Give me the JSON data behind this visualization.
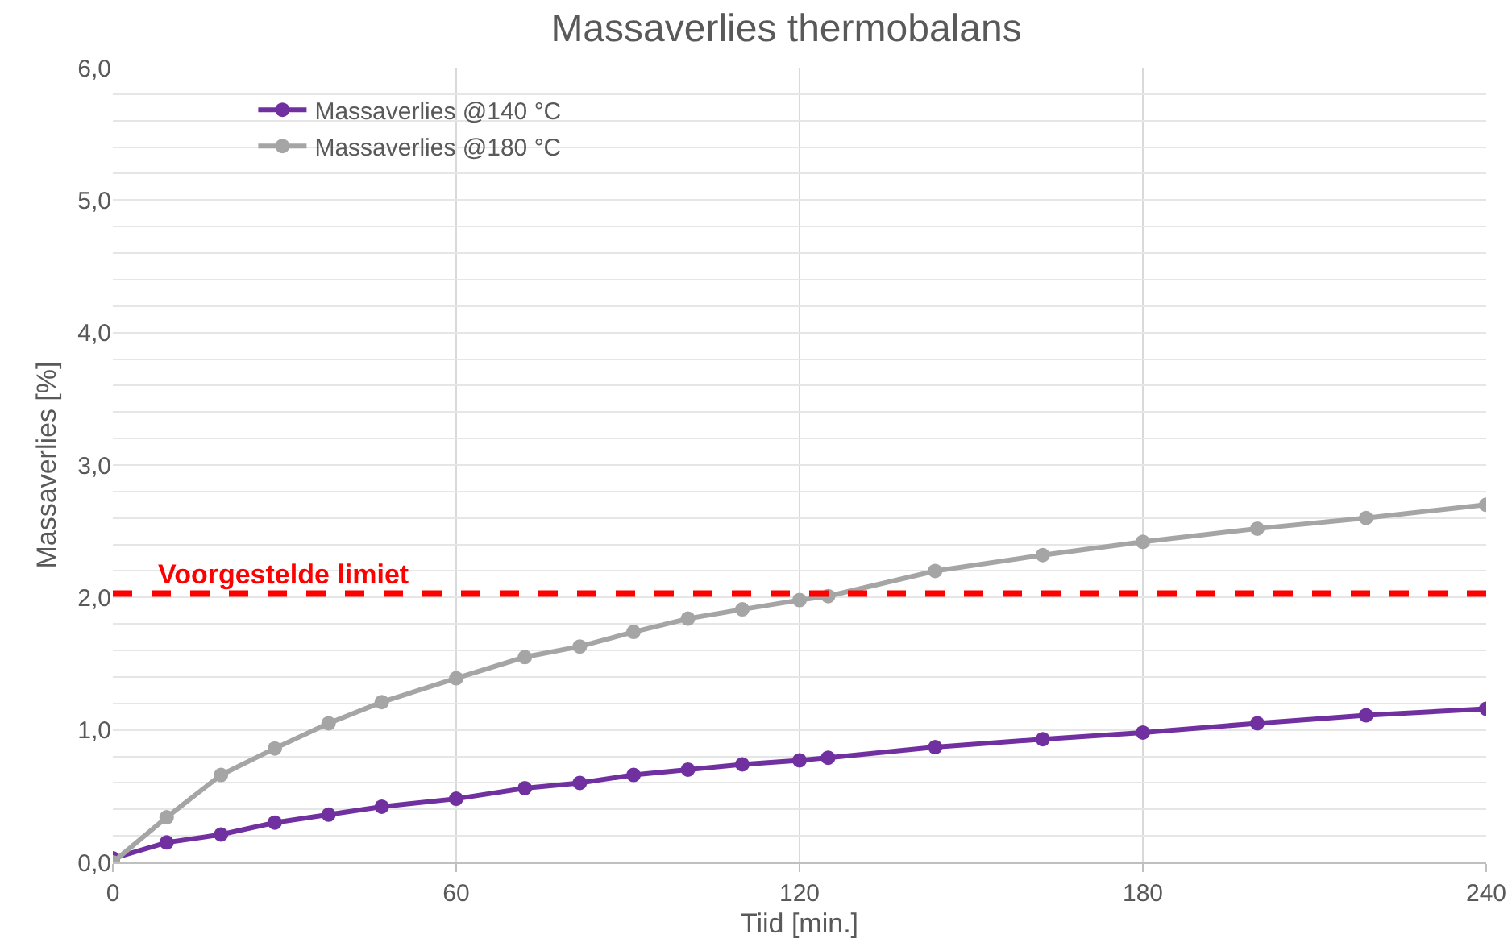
{
  "chart_data": {
    "type": "line",
    "title": "Massaverlies thermobalans",
    "xlabel": "Tiid [min.]",
    "ylabel": "Massaverlies [%]",
    "xlim": [
      0,
      240
    ],
    "xticks": [
      0,
      60,
      120,
      180,
      240
    ],
    "ylim": [
      0,
      6
    ],
    "yticks": [
      {
        "value": 0,
        "label": "0,0"
      },
      {
        "value": 0.2,
        "label": null
      },
      {
        "value": 0.4,
        "label": null
      },
      {
        "value": 0.6,
        "label": null
      },
      {
        "value": 0.8,
        "label": null
      },
      {
        "value": 1,
        "label": "1,0"
      },
      {
        "value": 1.2,
        "label": null
      },
      {
        "value": 1.4,
        "label": null
      },
      {
        "value": 1.6,
        "label": null
      },
      {
        "value": 1.8,
        "label": null
      },
      {
        "value": 2,
        "label": "2,0"
      },
      {
        "value": 2.2,
        "label": null
      },
      {
        "value": 2.4,
        "label": null
      },
      {
        "value": 2.6,
        "label": null
      },
      {
        "value": 2.8,
        "label": null
      },
      {
        "value": 3,
        "label": "3,0"
      },
      {
        "value": 3.2,
        "label": null
      },
      {
        "value": 3.4,
        "label": null
      },
      {
        "value": 3.6,
        "label": null
      },
      {
        "value": 3.8,
        "label": null
      },
      {
        "value": 4,
        "label": "4,0"
      },
      {
        "value": 4.2,
        "label": null
      },
      {
        "value": 4.4,
        "label": null
      },
      {
        "value": 4.6,
        "label": null
      },
      {
        "value": 4.8,
        "label": null
      },
      {
        "value": 5,
        "label": "5,0"
      },
      {
        "value": 5.2,
        "label": null
      },
      {
        "value": 5.4,
        "label": null
      },
      {
        "value": 5.6,
        "label": null
      },
      {
        "value": 5.8,
        "label": null
      },
      {
        "value": 6,
        "label": "6,0"
      }
    ],
    "grid": true,
    "legend": "top left",
    "marker": "circle",
    "line_style": "solid",
    "series": [
      {
        "name": "Massaverlies @140 °C",
        "color": "#7030a0",
        "x": [
          0,
          9.4,
          18.9,
          28.3,
          37.7,
          47,
          60,
          72,
          81.6,
          91,
          100.5,
          110,
          120,
          125,
          143.7,
          162.5,
          180,
          200,
          219,
          240
        ],
        "values": [
          0.03,
          0.15,
          0.21,
          0.3,
          0.36,
          0.42,
          0.48,
          0.56,
          0.6,
          0.66,
          0.7,
          0.74,
          0.77,
          0.79,
          0.87,
          0.93,
          0.98,
          1.05,
          1.11,
          1.16
        ]
      },
      {
        "name": "Massaverlies @180 °C",
        "color": "#a5a5a5",
        "x": [
          0,
          9.4,
          18.9,
          28.3,
          37.7,
          47,
          60,
          72,
          81.6,
          91,
          100.5,
          110,
          120,
          125,
          143.7,
          162.5,
          180,
          200,
          219,
          240
        ],
        "values": [
          0,
          0.34,
          0.66,
          0.86,
          1.05,
          1.21,
          1.39,
          1.55,
          1.63,
          1.74,
          1.84,
          1.91,
          1.98,
          2.01,
          2.2,
          2.32,
          2.42,
          2.52,
          2.6,
          2.7
        ]
      }
    ],
    "ref_lines": [
      {
        "axis": "y",
        "value": 2.03,
        "label": "Voorgestelde limiet",
        "color": "#ff0000",
        "line_style": "dashed"
      }
    ]
  }
}
